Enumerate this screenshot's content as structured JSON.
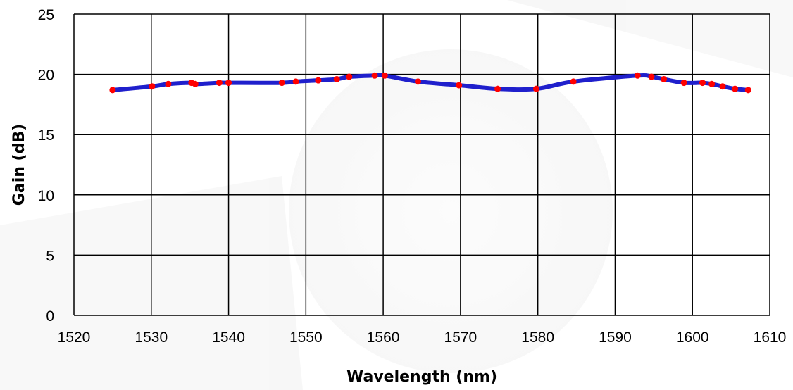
{
  "chart_data": {
    "type": "line",
    "title": "",
    "xlabel": "Wavelength (nm)",
    "ylabel": "Gain (dB)",
    "xlim": [
      1520,
      1610
    ],
    "ylim": [
      0,
      25
    ],
    "x_ticks": [
      1520,
      1530,
      1540,
      1550,
      1560,
      1570,
      1580,
      1590,
      1600,
      1610
    ],
    "y_ticks": [
      0,
      5,
      10,
      15,
      20,
      25
    ],
    "grid": true,
    "legend": "none",
    "series": [
      {
        "line_color": "#1f1fcc",
        "marker_color": "#ff0000",
        "points": [
          [
            1525.0,
            18.7
          ],
          [
            1530.1,
            19.0
          ],
          [
            1532.2,
            19.2
          ],
          [
            1535.2,
            19.3
          ],
          [
            1535.7,
            19.2
          ],
          [
            1538.8,
            19.3
          ],
          [
            1540.0,
            19.3
          ],
          [
            1546.9,
            19.3
          ],
          [
            1548.7,
            19.4
          ],
          [
            1551.6,
            19.5
          ],
          [
            1554.0,
            19.6
          ],
          [
            1555.6,
            19.8
          ],
          [
            1558.9,
            19.9
          ],
          [
            1560.2,
            19.9
          ],
          [
            1564.5,
            19.4
          ],
          [
            1569.8,
            19.1
          ],
          [
            1574.8,
            18.8
          ],
          [
            1579.8,
            18.8
          ],
          [
            1584.6,
            19.4
          ],
          [
            1592.9,
            19.9
          ],
          [
            1594.7,
            19.8
          ],
          [
            1596.3,
            19.6
          ],
          [
            1598.9,
            19.3
          ],
          [
            1601.3,
            19.3
          ],
          [
            1602.5,
            19.2
          ],
          [
            1603.9,
            19.0
          ],
          [
            1605.5,
            18.8
          ],
          [
            1607.2,
            18.7
          ]
        ]
      }
    ]
  }
}
